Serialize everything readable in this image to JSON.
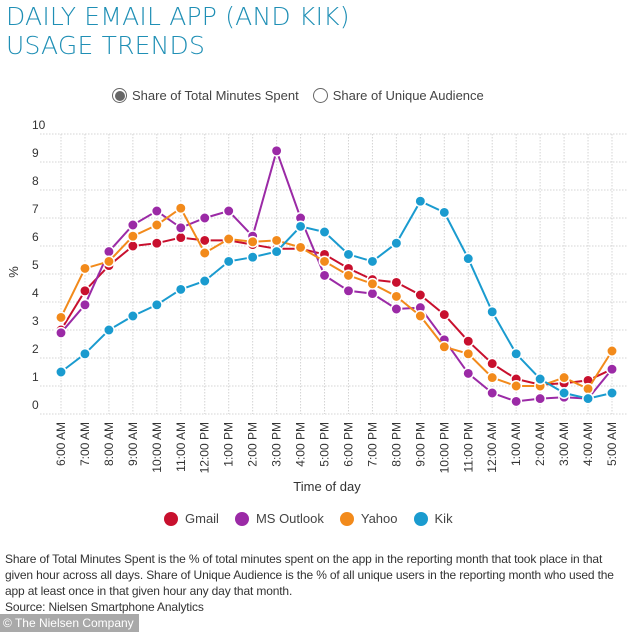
{
  "title": {
    "line1": "DAILY EMAIL APP (AND KIK)",
    "line2": "USAGE TRENDS"
  },
  "toggle": {
    "options": [
      {
        "label": "Share of Total Minutes Spent",
        "selected": true
      },
      {
        "label": "Share of Unique Audience",
        "selected": false
      }
    ]
  },
  "chart_data": {
    "type": "line",
    "title": "Daily Email App (and Kik) Usage Trends",
    "xlabel": "Time of day",
    "ylabel": "%",
    "ylim": [
      0,
      10
    ],
    "yticks": [
      0,
      1,
      2,
      3,
      4,
      5,
      6,
      7,
      8,
      9,
      10
    ],
    "grid": true,
    "legend_position": "bottom",
    "categories": [
      "6:00 AM",
      "7:00 AM",
      "8:00 AM",
      "9:00 AM",
      "10:00 AM",
      "11:00 AM",
      "12:00 PM",
      "1:00 PM",
      "2:00 PM",
      "3:00 PM",
      "4:00 PM",
      "5:00 PM",
      "6:00 PM",
      "7:00 PM",
      "8:00 PM",
      "9:00 PM",
      "10:00 PM",
      "11:00 PM",
      "12:00 AM",
      "1:00 AM",
      "2:00 AM",
      "3:00 AM",
      "4:00 AM",
      "5:00 AM"
    ],
    "series": [
      {
        "name": "Gmail",
        "color": "#c8102e",
        "values": [
          3.0,
          4.4,
          5.3,
          6.0,
          6.1,
          6.3,
          6.2,
          6.2,
          6.05,
          5.9,
          5.9,
          5.7,
          5.2,
          4.8,
          4.7,
          4.25,
          3.55,
          2.6,
          1.8,
          1.25,
          1.05,
          1.1,
          1.2,
          1.6
        ]
      },
      {
        "name": "MS Outlook",
        "color": "#9b2aa6",
        "values": [
          2.9,
          3.9,
          5.8,
          6.75,
          7.25,
          6.65,
          7.0,
          7.25,
          6.35,
          9.4,
          7.0,
          4.95,
          4.4,
          4.3,
          3.75,
          3.8,
          2.65,
          1.45,
          0.75,
          0.45,
          0.55,
          0.6,
          0.55,
          1.6
        ]
      },
      {
        "name": "Yahoo",
        "color": "#f28a1b",
        "values": [
          3.45,
          5.2,
          5.45,
          6.35,
          6.75,
          7.35,
          5.75,
          6.25,
          6.15,
          6.2,
          5.95,
          5.45,
          4.95,
          4.65,
          4.2,
          3.5,
          2.4,
          2.15,
          1.3,
          1.0,
          1.0,
          1.3,
          0.9,
          2.25
        ]
      },
      {
        "name": "Kik",
        "color": "#1a9bcf",
        "values": [
          1.5,
          2.15,
          3.0,
          3.5,
          3.9,
          4.45,
          4.75,
          5.45,
          5.6,
          5.8,
          6.7,
          6.5,
          5.7,
          5.45,
          6.1,
          7.6,
          7.2,
          5.55,
          3.65,
          2.15,
          1.25,
          0.75,
          0.55,
          0.75
        ]
      }
    ]
  },
  "legend": {
    "items": [
      {
        "label": "Gmail",
        "color": "#c8102e"
      },
      {
        "label": "MS Outlook",
        "color": "#9b2aa6"
      },
      {
        "label": "Yahoo",
        "color": "#f28a1b"
      },
      {
        "label": "Kik",
        "color": "#1a9bcf"
      }
    ]
  },
  "notes": {
    "definition": "Share of Total Minutes Spent is the % of total minutes spent on the app in the reporting month that took place in that given hour across all days. Share of Unique Audience is the % of all unique users in the reporting month who used the app at least once in that given hour any day that month.",
    "source": "Source: Nielsen Smartphone Analytics"
  },
  "credit": "© The Nielsen Company"
}
